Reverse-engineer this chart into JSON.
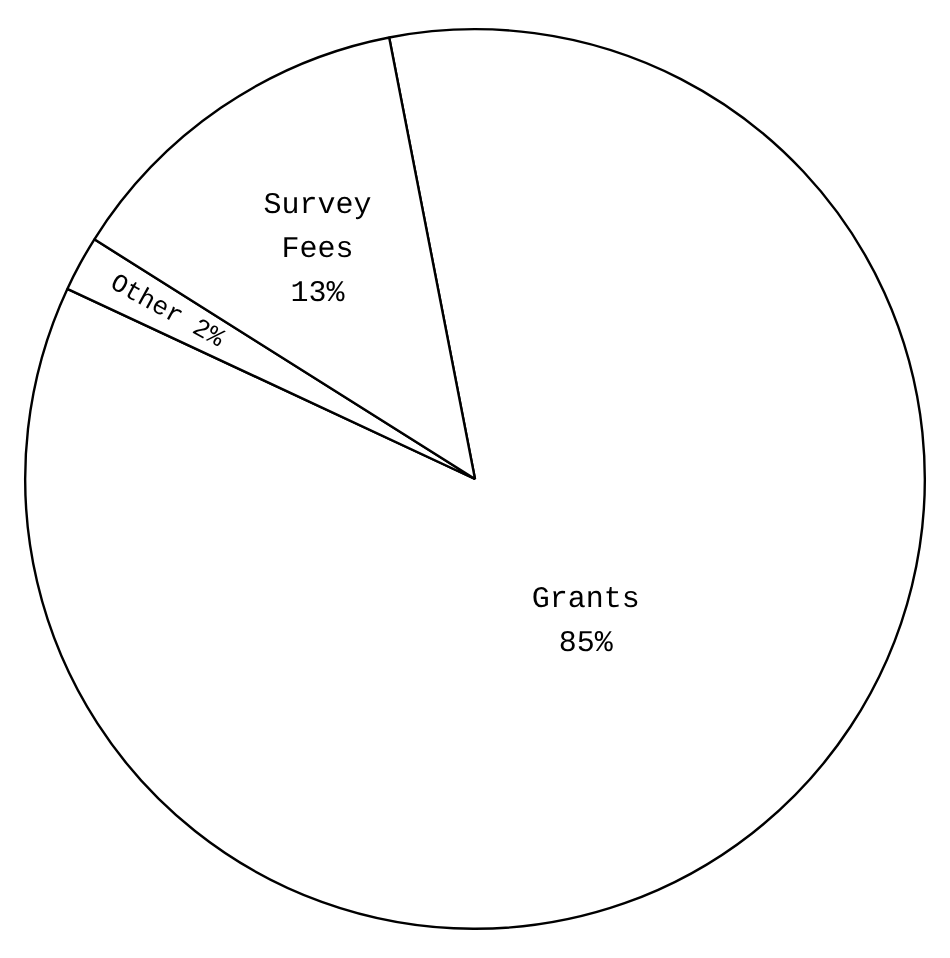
{
  "chart_data": {
    "type": "pie",
    "categories": [
      "Grants",
      "Other",
      "Survey Fees"
    ],
    "values": [
      85,
      2,
      13
    ],
    "colors": [
      "#ffffff",
      "#ffffff",
      "#ffffff"
    ],
    "value_labels": [
      "85%",
      "2%",
      "13%"
    ],
    "legend": false
  }
}
